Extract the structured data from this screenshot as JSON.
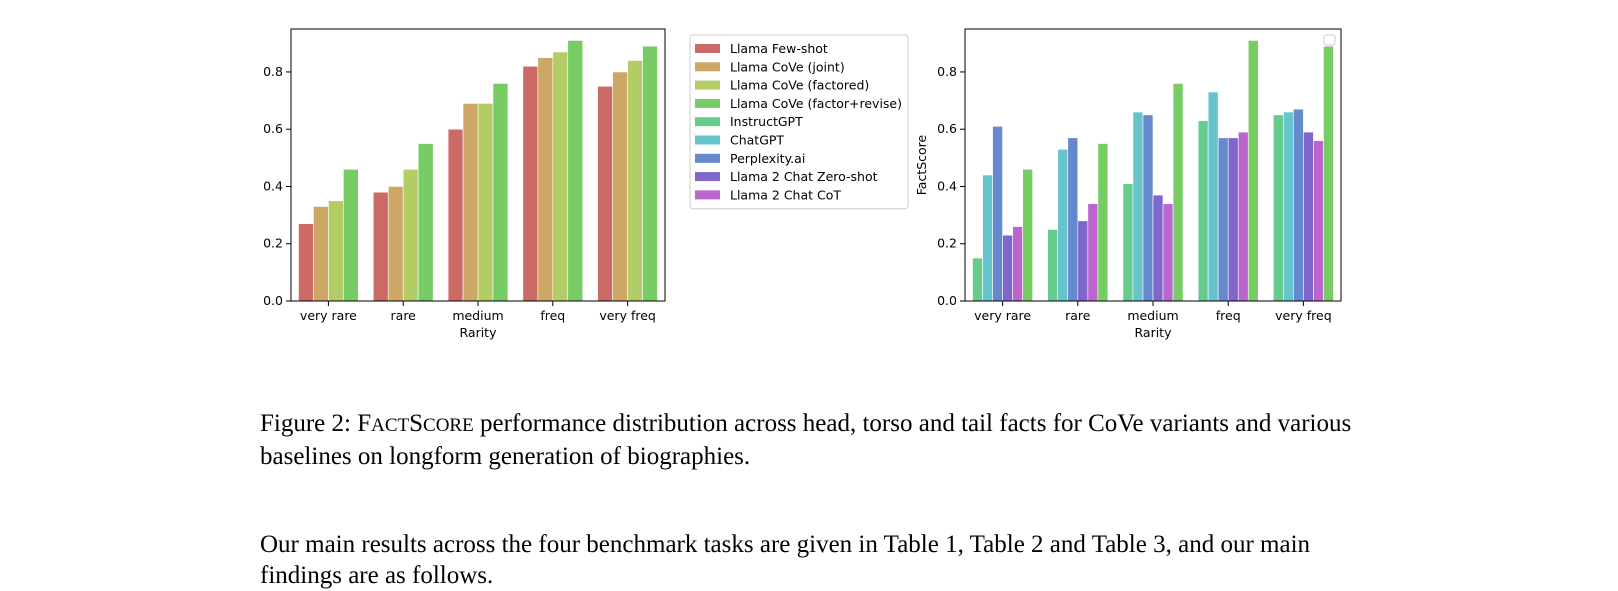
{
  "chart_data": [
    {
      "type": "bar",
      "categories": [
        "very rare",
        "rare",
        "medium",
        "freq",
        "very freq"
      ],
      "xlabel": "Rarity",
      "ylabel": "",
      "ylim": [
        0,
        0.95
      ],
      "yticks": [
        "0.0",
        "0.2",
        "0.4",
        "0.6",
        "0.8"
      ],
      "series": [
        {
          "name": "Llama Few-shot",
          "color": "#cc6b66",
          "values": [
            0.27,
            0.38,
            0.6,
            0.82,
            0.75
          ]
        },
        {
          "name": "Llama CoVe (joint)",
          "color": "#cca766",
          "values": [
            0.33,
            0.4,
            0.69,
            0.85,
            0.8
          ]
        },
        {
          "name": "Llama CoVe (factored)",
          "color": "#b3cc66",
          "values": [
            0.35,
            0.46,
            0.69,
            0.87,
            0.84
          ]
        },
        {
          "name": "Llama CoVe (factor+revise)",
          "color": "#77cc66",
          "values": [
            0.46,
            0.55,
            0.76,
            0.91,
            0.89
          ]
        }
      ],
      "legend": "outside-right"
    },
    {
      "type": "bar",
      "categories": [
        "very rare",
        "rare",
        "medium",
        "freq",
        "very freq"
      ],
      "xlabel": "Rarity",
      "ylabel": "FactScore",
      "ylim": [
        0,
        0.95
      ],
      "yticks": [
        "0.0",
        "0.2",
        "0.4",
        "0.6",
        "0.8"
      ],
      "series": [
        {
          "name": "InstructGPT",
          "color": "#66cc8e",
          "values": [
            0.15,
            0.25,
            0.41,
            0.63,
            0.65
          ]
        },
        {
          "name": "ChatGPT",
          "color": "#66c4cc",
          "values": [
            0.44,
            0.53,
            0.66,
            0.73,
            0.66
          ]
        },
        {
          "name": "Perplexity.ai",
          "color": "#6688cc",
          "values": [
            0.61,
            0.57,
            0.65,
            0.57,
            0.67
          ]
        },
        {
          "name": "Llama 2 Chat Zero-shot",
          "color": "#7f66cc",
          "values": [
            0.23,
            0.28,
            0.37,
            0.57,
            0.59
          ]
        },
        {
          "name": "Llama 2 Chat CoT",
          "color": "#bb66cc",
          "values": [
            0.26,
            0.34,
            0.34,
            0.59,
            0.56
          ]
        },
        {
          "name": "Llama CoVe (factor+revise)",
          "color": "#77cc66",
          "values": [
            0.46,
            0.55,
            0.76,
            0.91,
            0.89
          ]
        }
      ],
      "legend": "empty box top-right"
    }
  ],
  "legend_entries": [
    {
      "label": "Llama Few-shot",
      "color": "#cc6b66"
    },
    {
      "label": "Llama CoVe (joint)",
      "color": "#cca766"
    },
    {
      "label": "Llama CoVe (factored)",
      "color": "#b3cc66"
    },
    {
      "label": "Llama CoVe (factor+revise)",
      "color": "#77cc66"
    },
    {
      "label": "InstructGPT",
      "color": "#66cc8e"
    },
    {
      "label": "ChatGPT",
      "color": "#66c4cc"
    },
    {
      "label": "Perplexity.ai",
      "color": "#6688cc"
    },
    {
      "label": "Llama 2 Chat Zero-shot",
      "color": "#7f66cc"
    },
    {
      "label": "Llama 2 Chat CoT",
      "color": "#bb66cc"
    }
  ],
  "caption": {
    "prefix": "Figure 2: ",
    "sc_F": "F",
    "sc_act": "ACT",
    "sc_S": "S",
    "sc_core": "CORE",
    "rest": " performance distribution across head, torso and tail facts for CoVe variants and various baselines on longform generation of biographies."
  },
  "body_text": "Our main results across the four benchmark tasks are given in Table 1, Table 2 and Table 3, and our main findings are as follows."
}
